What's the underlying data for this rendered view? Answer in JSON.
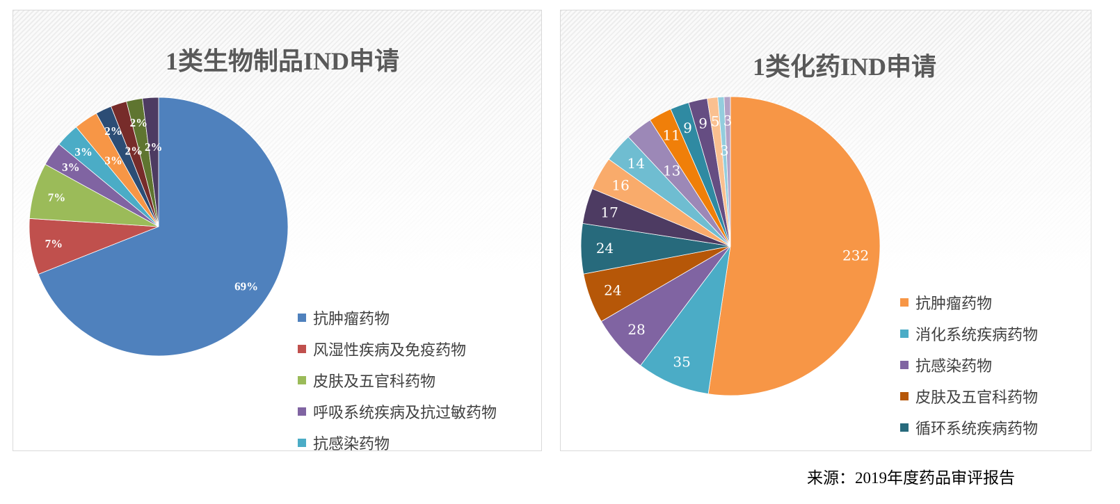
{
  "charts": [
    {
      "title": "1类生物制品IND申请"
    },
    {
      "title": "1类化药IND申请"
    }
  ],
  "chart_data": [
    {
      "type": "pie",
      "title": "1类生物制品IND申请",
      "label_format": "percent",
      "values": [
        69,
        7,
        7,
        3,
        3,
        3,
        2,
        2,
        2,
        2
      ],
      "labels": [
        "69%",
        "7%",
        "7%",
        "3%",
        "3%",
        "3%",
        "2%",
        "2%",
        "2%",
        "2%"
      ],
      "colors": [
        "#4f81bd",
        "#c0504d",
        "#9bbb59",
        "#8064a2",
        "#4bacc6",
        "#f79646",
        "#2c4d75",
        "#772c2a",
        "#5f7530",
        "#4d3b62"
      ],
      "legend": [
        "抗肿瘤药物",
        "风湿性疾病及免疫药物",
        "皮肤及五官科药物",
        "呼吸系统疾病及抗过敏药物",
        "抗感染药物"
      ],
      "legend_position": "bottom-right"
    },
    {
      "type": "pie",
      "title": "1类化药IND申请",
      "label_format": "value",
      "values": [
        232,
        35,
        28,
        24,
        24,
        17,
        16,
        14,
        13,
        11,
        9,
        9,
        5,
        3,
        3
      ],
      "labels": [
        "232",
        "35",
        "28",
        "24",
        "24",
        "17",
        "16",
        "14",
        "13",
        "11",
        "9",
        "9",
        "5",
        "3",
        "3"
      ],
      "colors": [
        "#f79646",
        "#4bacc6",
        "#8064a2",
        "#b65708",
        "#276a7c",
        "#4d3b62",
        "#f9ab6b",
        "#6fbdd1",
        "#9c88b7",
        "#f07f09",
        "#2f8aa2",
        "#654d82",
        "#fac090",
        "#93cddd",
        "#b3a2c7"
      ],
      "legend": [
        "抗肿瘤药物",
        "消化系统疾病药物",
        "抗感染药物",
        "皮肤及五官科药物",
        "循环系统疾病药物"
      ],
      "legend_position": "bottom-right"
    }
  ],
  "source": "来源：2019年度药品审评报告"
}
